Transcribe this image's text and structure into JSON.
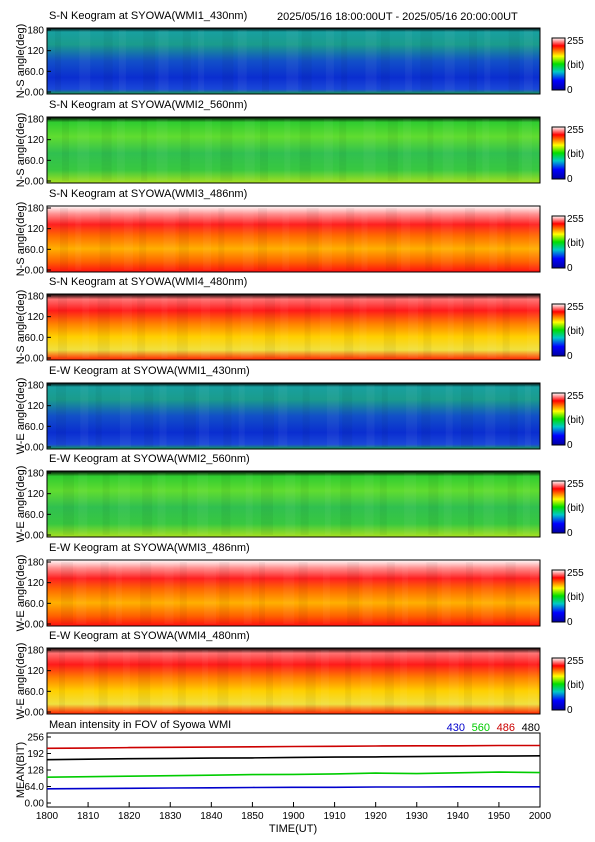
{
  "header": {
    "time_range": "2025/05/16 18:00:00UT - 2025/05/16 20:00:00UT"
  },
  "colorbar": {
    "max_label": "255",
    "unit_label": "(bit)",
    "min_label": "0"
  },
  "keograms": [
    {
      "title": "S-N Keogram at SYOWA(WMI1_430nm)",
      "ylabel": "N-S angle(deg)",
      "yticks": [
        "180",
        "120",
        "60.0",
        "0.00"
      ],
      "palette": "blue"
    },
    {
      "title": "S-N Keogram at SYOWA(WMI2_560nm)",
      "ylabel": "N-S angle(deg)",
      "yticks": [
        "180",
        "120",
        "60.0",
        "0.00"
      ],
      "palette": "green"
    },
    {
      "title": "S-N Keogram at SYOWA(WMI3_486nm)",
      "ylabel": "N-S angle(deg)",
      "yticks": [
        "180",
        "120",
        "60.0",
        "0.00"
      ],
      "palette": "red"
    },
    {
      "title": "S-N Keogram at SYOWA(WMI4_480nm)",
      "ylabel": "N-S angle(deg)",
      "yticks": [
        "180",
        "120",
        "60.0",
        "0.00"
      ],
      "palette": "red2"
    },
    {
      "title": "E-W Keogram at SYOWA(WMI1_430nm)",
      "ylabel": "W-E angle(deg)",
      "yticks": [
        "180",
        "120",
        "60.0",
        "0.00"
      ],
      "palette": "blue"
    },
    {
      "title": "E-W Keogram at SYOWA(WMI2_560nm)",
      "ylabel": "W-E angle(deg)",
      "yticks": [
        "180",
        "120",
        "60.0",
        "0.00"
      ],
      "palette": "green"
    },
    {
      "title": "E-W Keogram at SYOWA(WMI3_486nm)",
      "ylabel": "W-E angle(deg)",
      "yticks": [
        "180",
        "120",
        "60.0",
        "0.00"
      ],
      "palette": "red"
    },
    {
      "title": "E-W Keogram at SYOWA(WMI4_480nm)",
      "ylabel": "W-E angle(deg)",
      "yticks": [
        "180",
        "120",
        "60.0",
        "0.00"
      ],
      "palette": "red2"
    }
  ],
  "chart_data": {
    "type": "line",
    "title": "Mean intensity in FOV of Syowa WMI",
    "xlabel": "TIME(UT)",
    "ylabel": "MEAN(BIT)",
    "x_ticks": [
      "1800",
      "1810",
      "1820",
      "1830",
      "1840",
      "1850",
      "1900",
      "1910",
      "1920",
      "1930",
      "1940",
      "1950",
      "2000"
    ],
    "y_ticks": [
      "256",
      "192",
      "128",
      "64.0",
      "0.00"
    ],
    "ylim": [
      0,
      256
    ],
    "x": [
      "1800",
      "1810",
      "1820",
      "1830",
      "1840",
      "1850",
      "1900",
      "1910",
      "1920",
      "1930",
      "1940",
      "1950",
      "2000"
    ],
    "series": [
      {
        "name": "430",
        "color": "#0000cc",
        "values": [
          55,
          56,
          57,
          58,
          59,
          60,
          61,
          61,
          62,
          62,
          63,
          63,
          63
        ]
      },
      {
        "name": "560",
        "color": "#00cc00",
        "values": [
          100,
          102,
          104,
          106,
          108,
          110,
          111,
          113,
          116,
          114,
          117,
          120,
          118
        ]
      },
      {
        "name": "486",
        "color": "#cc0000",
        "values": [
          212,
          213,
          215,
          216,
          217,
          218,
          219,
          220,
          221,
          222,
          222,
          223,
          223
        ]
      },
      {
        "name": "480",
        "color": "#000000",
        "values": [
          168,
          170,
          172,
          173,
          174,
          175,
          177,
          178,
          179,
          180,
          181,
          182,
          183
        ]
      }
    ]
  }
}
